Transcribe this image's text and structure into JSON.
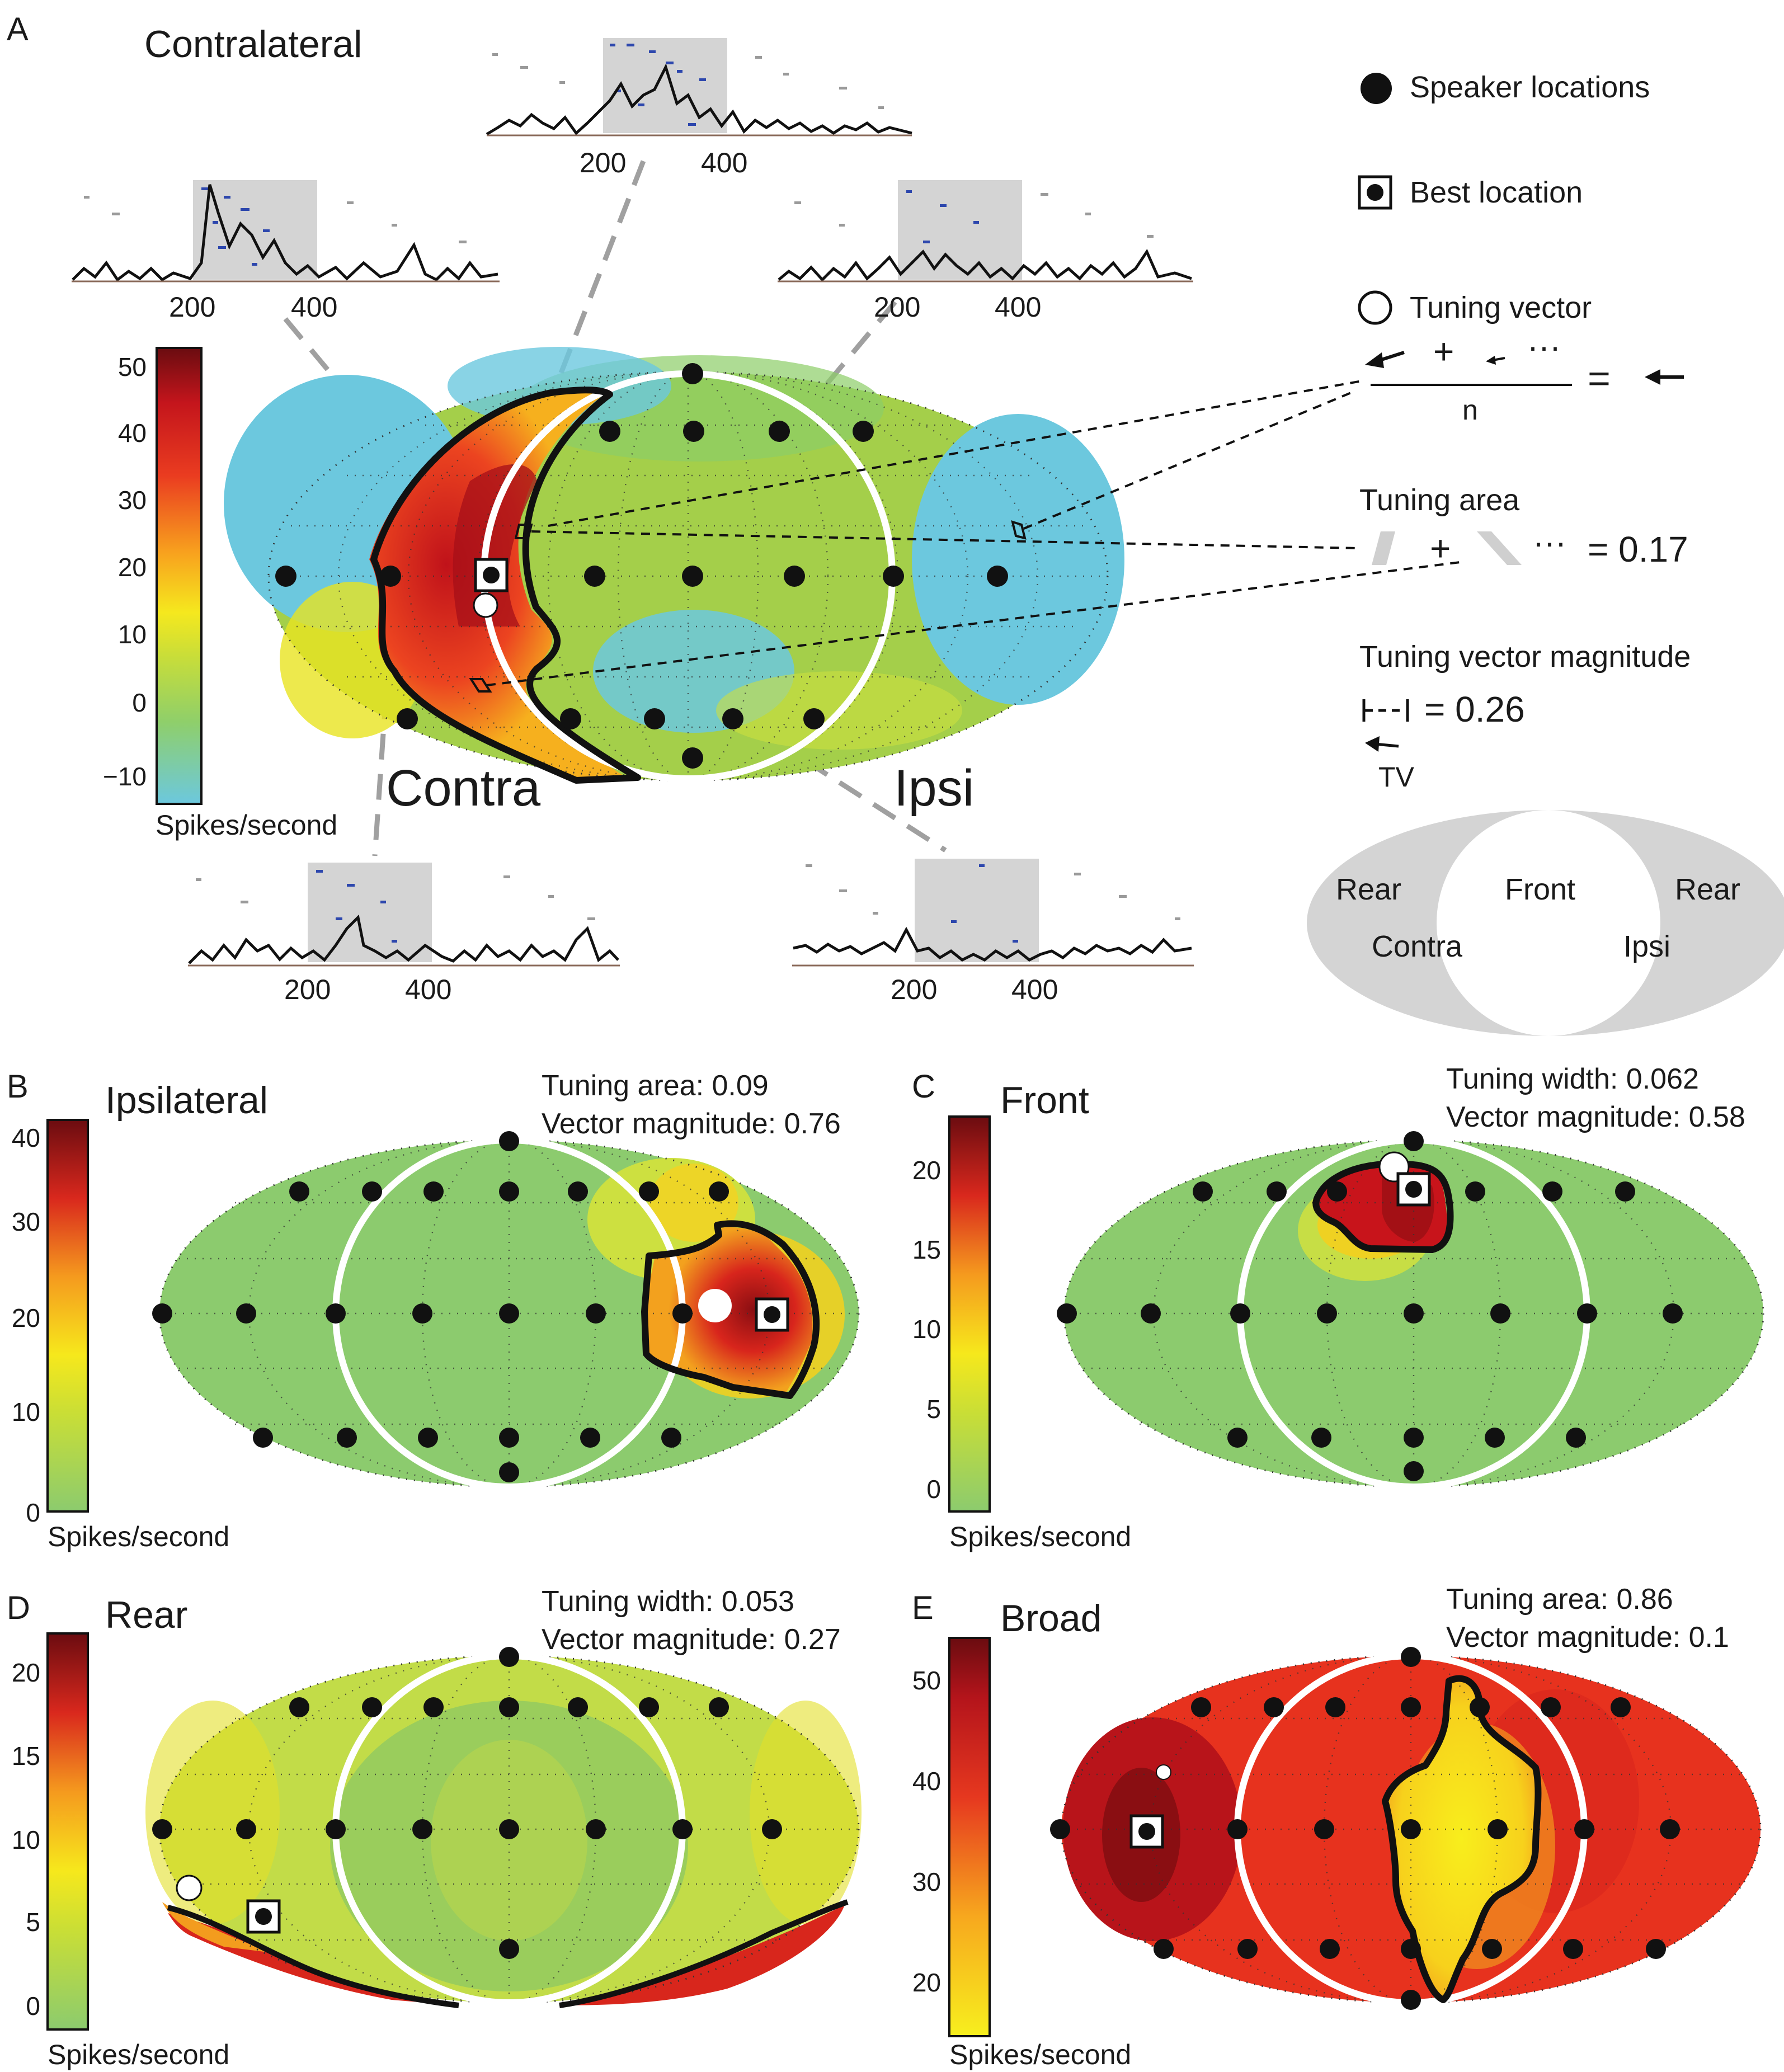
{
  "panel_a": {
    "letter": "A",
    "title": "Contralateral",
    "colorbar": {
      "ticks": [
        "50",
        "40",
        "30",
        "20",
        "10",
        "0",
        "−10"
      ],
      "label": "Spikes/second"
    },
    "region_labels": {
      "contra": "Contra",
      "ipsi": "Ipsi"
    },
    "raster_ticks": [
      "200",
      "400"
    ],
    "legend": {
      "speaker": "Speaker locations",
      "best": "Best location",
      "tuning_vector": "Tuning vector",
      "plus": "+",
      "dots": "···",
      "equals": "=",
      "n": "n",
      "tuning_area_title": "Tuning area",
      "tuning_area_value": "= 0.17",
      "tvm_title": "Tuning vector magnitude",
      "tvm_value": "= 0.26",
      "tv": "TV"
    },
    "schematic": {
      "rear_left": "Rear",
      "front": "Front",
      "rear_right": "Rear",
      "contra": "Contra",
      "ipsi": "Ipsi"
    }
  },
  "panel_b": {
    "letter": "B",
    "title": "Ipsilateral",
    "stat1": "Tuning area: 0.09",
    "stat2": "Vector magnitude: 0.76",
    "colorbar": {
      "ticks": [
        "40",
        "30",
        "20",
        "10",
        "0"
      ],
      "label": "Spikes/second"
    }
  },
  "panel_c": {
    "letter": "C",
    "title": "Front",
    "stat1": "Tuning width: 0.062",
    "stat2": "Vector magnitude: 0.58",
    "colorbar": {
      "ticks": [
        "20",
        "15",
        "10",
        "5",
        "0"
      ],
      "label": "Spikes/second"
    }
  },
  "panel_d": {
    "letter": "D",
    "title": "Rear",
    "stat1": "Tuning width: 0.053",
    "stat2": "Vector magnitude: 0.27",
    "colorbar": {
      "ticks": [
        "20",
        "15",
        "10",
        "5",
        "0"
      ],
      "label": "Spikes/second"
    }
  },
  "panel_e": {
    "letter": "E",
    "title": "Broad",
    "stat1": "Tuning area: 0.86",
    "stat2": "Vector magnitude: 0.1",
    "colorbar": {
      "ticks": [
        "50",
        "40",
        "30",
        "20"
      ],
      "label": "Spikes/second"
    }
  },
  "colors": {
    "hot": "#b0131a",
    "cool": "#6cc8de",
    "mid": "#9ccc4a",
    "accent_dots": "#2b3fa0"
  }
}
